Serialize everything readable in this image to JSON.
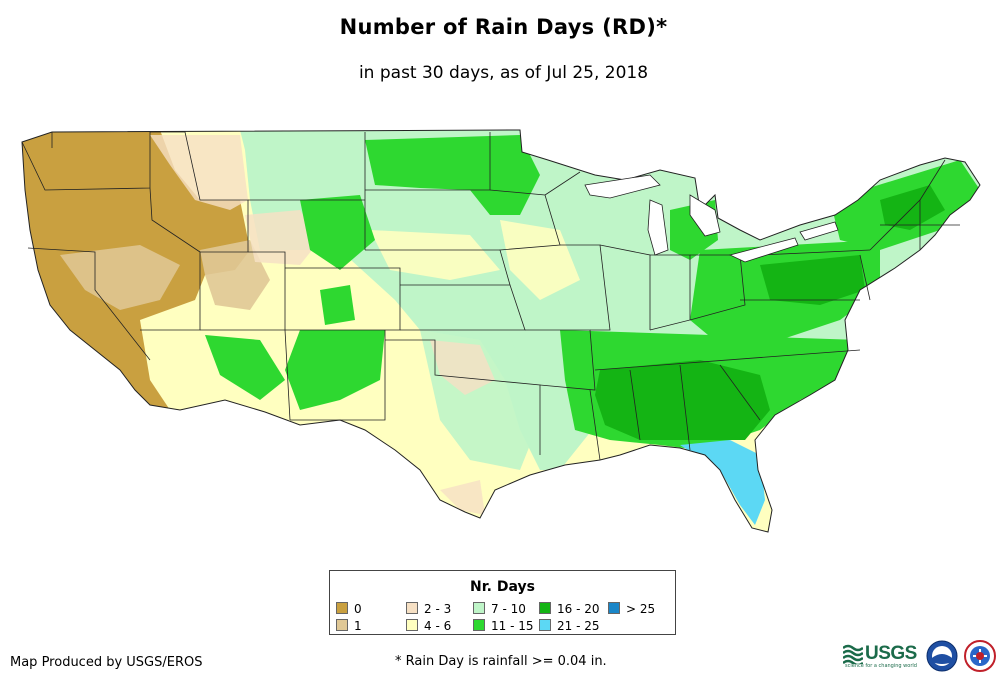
{
  "header": {
    "title": "Number of Rain Days (RD)*",
    "subtitle": "in past 30 days, as of Jul 25, 2018"
  },
  "legend": {
    "title": "Nr. Days",
    "items": [
      {
        "label": "0",
        "color": "#c9a040"
      },
      {
        "label": "1",
        "color": "#e0c896"
      },
      {
        "label": "2 - 3",
        "color": "#f6e0c4"
      },
      {
        "label": "4 - 6",
        "color": "#ffffc0"
      },
      {
        "label": "7 - 10",
        "color": "#bff5c8"
      },
      {
        "label": "11 - 15",
        "color": "#2ed830"
      },
      {
        "label": "16 - 20",
        "color": "#14b414"
      },
      {
        "label": "21 - 25",
        "color": "#5cd8f4"
      },
      {
        "label": "> 25",
        "color": "#1a86c8"
      }
    ]
  },
  "footer": {
    "producer": "Map Produced by USGS/EROS",
    "footnote": "* Rain Day is rainfall >= 0.04 in.",
    "usgs_logo_text": "USGS",
    "usgs_tagline": "science for a changing world",
    "noaa_logo": "noaa-seal-icon",
    "nws_logo": "nws-seal-icon"
  }
}
